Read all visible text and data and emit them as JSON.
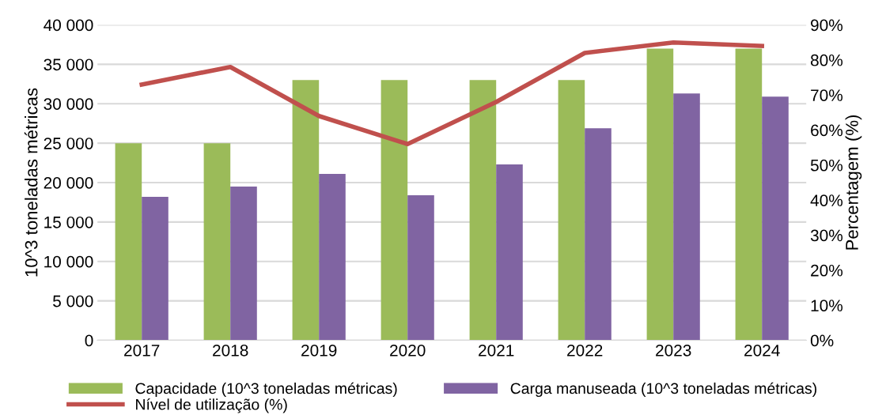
{
  "chart_data": {
    "type": "bar",
    "categories": [
      "2017",
      "2018",
      "2019",
      "2020",
      "2021",
      "2022",
      "2023",
      "2024"
    ],
    "ylabel": "10^3 toneladas métricas",
    "y2label": "Percentagem (%)",
    "series": [
      {
        "name": "Capacidade (10^3 toneladas métricas)",
        "color": "#9bbb59",
        "values": [
          25000,
          25000,
          33000,
          33000,
          33000,
          33000,
          37000,
          37000
        ]
      },
      {
        "name": "Carga manuseada (10^3 toneladas métricas)",
        "color": "#8064a2",
        "values": [
          18200,
          19500,
          21100,
          18400,
          22300,
          26900,
          31300,
          30900
        ]
      },
      {
        "name": "Nível de utilização (%)",
        "type": "line",
        "axis": "y2",
        "color": "#c0504d",
        "marker": "none",
        "values": [
          73,
          78,
          64,
          56,
          68,
          82,
          85,
          84
        ]
      }
    ],
    "ylim": [
      0,
      40000
    ],
    "yticks": [
      {
        "value": 0,
        "label": "0"
      },
      {
        "value": 5000,
        "label": "5 000"
      },
      {
        "value": 10000,
        "label": "10 000"
      },
      {
        "value": 15000,
        "label": "15 000"
      },
      {
        "value": 20000,
        "label": "20 000"
      },
      {
        "value": 25000,
        "label": "25 000"
      },
      {
        "value": 30000,
        "label": "30 000"
      },
      {
        "value": 35000,
        "label": "35 000"
      },
      {
        "value": 40000,
        "label": "40 000"
      }
    ],
    "y2lim": [
      0,
      90
    ],
    "y2ticks": [
      {
        "value": 0,
        "label": "0%"
      },
      {
        "value": 10,
        "label": "10%"
      },
      {
        "value": 20,
        "label": "20%"
      },
      {
        "value": 30,
        "label": "30%"
      },
      {
        "value": 40,
        "label": "40%"
      },
      {
        "value": 50,
        "label": "50%"
      },
      {
        "value": 60,
        "label": "60%"
      },
      {
        "value": 70,
        "label": "70%"
      },
      {
        "value": 80,
        "label": "80%"
      },
      {
        "value": 90,
        "label": "90%"
      }
    ],
    "grid": "y",
    "legend": "bottom"
  }
}
